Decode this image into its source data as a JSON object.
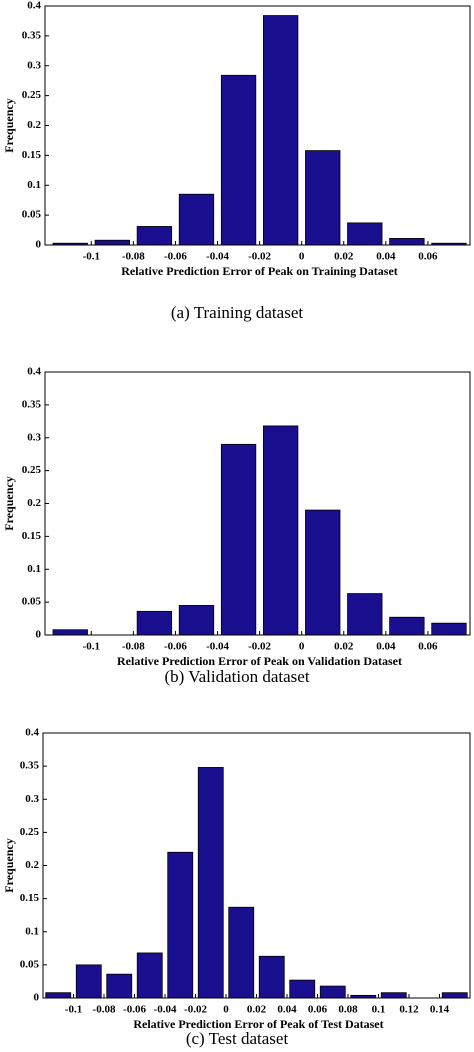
{
  "chart_data": [
    {
      "type": "histogram",
      "xlabel": "Relative Prediction Error of Peak on Training Dataset",
      "ylabel": "Frequency",
      "caption": "(a) Training dataset",
      "bins": [
        -0.12,
        -0.1,
        -0.08,
        -0.06,
        -0.04,
        -0.02,
        0,
        0.02,
        0.04,
        0.06,
        0.08
      ],
      "values": [
        0.003,
        0.008,
        0.031,
        0.085,
        0.284,
        0.384,
        0.158,
        0.037,
        0.011,
        0.003
      ],
      "color": "#1a0f8f",
      "xlim": [
        -0.122,
        0.08
      ],
      "ylim": [
        0,
        0.4
      ],
      "xticks": [
        -0.1,
        -0.08,
        -0.06,
        -0.04,
        -0.02,
        0,
        0.02,
        0.04,
        0.06
      ],
      "yticks": [
        0,
        0.05,
        0.1,
        0.15,
        0.2,
        0.25,
        0.3,
        0.35,
        0.4
      ]
    },
    {
      "type": "histogram",
      "xlabel": "Relative Prediction Error of Peak on Validation Dataset",
      "ylabel": "Frequency",
      "caption": "(b) Validation dataset",
      "bins": [
        -0.12,
        -0.1,
        -0.08,
        -0.06,
        -0.04,
        -0.02,
        0,
        0.02,
        0.04,
        0.06,
        0.08
      ],
      "values": [
        0.008,
        0,
        0.036,
        0.045,
        0.29,
        0.318,
        0.19,
        0.063,
        0.027,
        0.018
      ],
      "color": "#1a0f8f",
      "xlim": [
        -0.122,
        0.08
      ],
      "ylim": [
        0,
        0.4
      ],
      "xticks": [
        -0.1,
        -0.08,
        -0.06,
        -0.04,
        -0.02,
        0,
        0.02,
        0.04,
        0.06
      ],
      "yticks": [
        0,
        0.05,
        0.1,
        0.15,
        0.2,
        0.25,
        0.3,
        0.35,
        0.4
      ]
    },
    {
      "type": "histogram",
      "xlabel": "Relative Prediction Error of Peak of Test Dataset",
      "ylabel": "Frequency",
      "caption": "(c) Test dataset",
      "bins": [
        -0.12,
        -0.1,
        -0.08,
        -0.06,
        -0.04,
        -0.02,
        0,
        0.02,
        0.04,
        0.06,
        0.08,
        0.1,
        0.12,
        0.14,
        0.16
      ],
      "values": [
        0.008,
        0.05,
        0.036,
        0.068,
        0.22,
        0.348,
        0.137,
        0.063,
        0.027,
        0.018,
        0.004,
        0.008,
        0,
        0.008
      ],
      "color": "#1a0f8f",
      "xlim": [
        -0.12,
        0.16
      ],
      "ylim": [
        0,
        0.4
      ],
      "xticks": [
        -0.1,
        -0.08,
        -0.06,
        -0.04,
        -0.02,
        0,
        0.02,
        0.04,
        0.06,
        0.08,
        0.1,
        0.12,
        0.14
      ],
      "yticks": [
        0,
        0.05,
        0.1,
        0.15,
        0.2,
        0.25,
        0.3,
        0.35,
        0.4
      ]
    }
  ]
}
